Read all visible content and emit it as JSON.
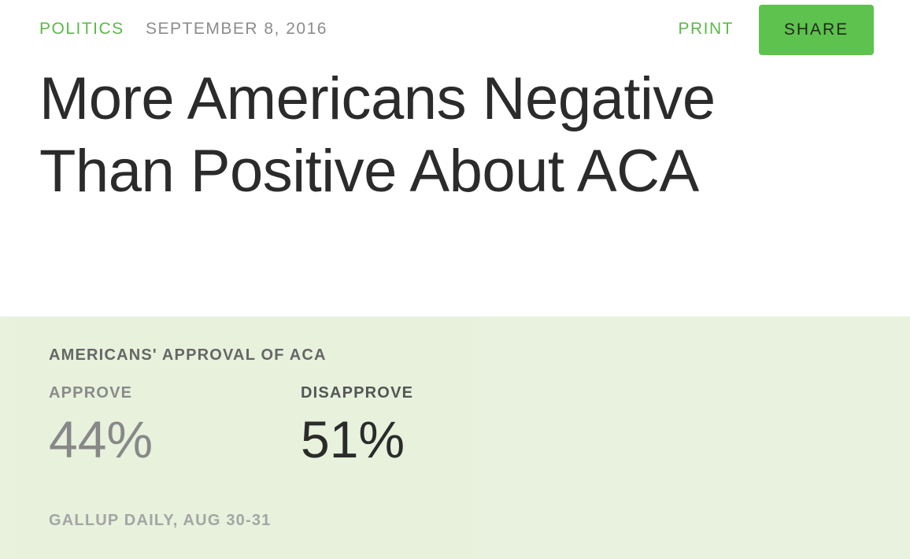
{
  "header": {
    "category": "POLITICS",
    "date": "SEPTEMBER 8, 2016",
    "print_label": "PRINT",
    "share_label": "SHARE"
  },
  "article": {
    "headline_line1": "More Americans Negative",
    "headline_line2": "Than Positive About ACA"
  },
  "stat_box": {
    "title": "AMERICANS' APPROVAL OF ACA",
    "approve_label": "APPROVE",
    "approve_value": "44%",
    "disapprove_label": "DISAPPROVE",
    "disapprove_value": "51%",
    "source": "GALLUP DAILY, AUG 30-31"
  },
  "colors": {
    "accent": "#5cb84a",
    "share_button": "#5ec24e",
    "panel_background": "#e9f2de",
    "headline_text": "#2b2b2b"
  }
}
